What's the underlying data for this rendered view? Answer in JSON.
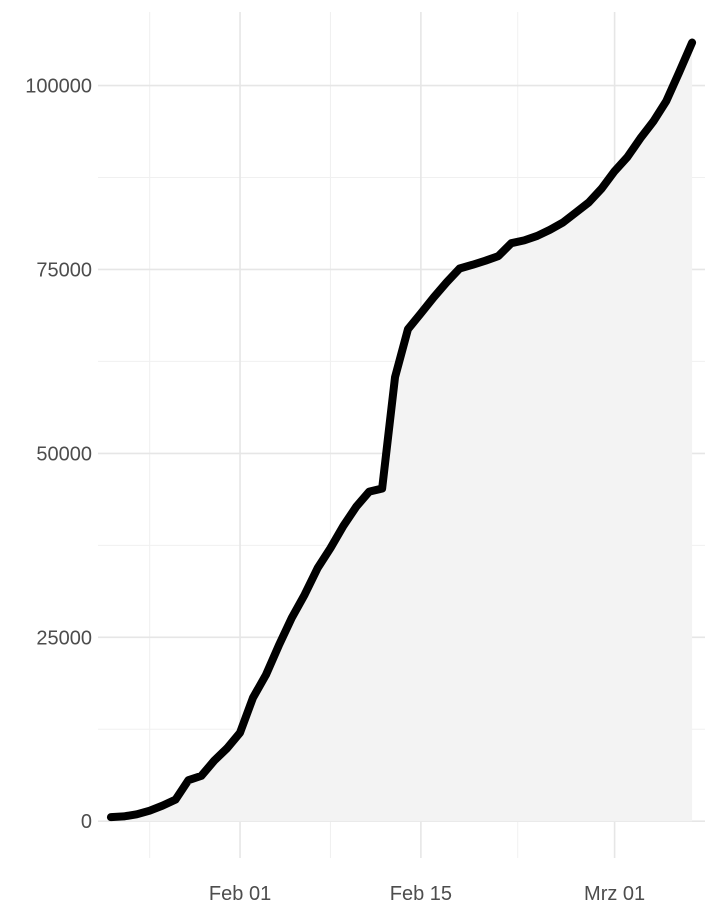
{
  "chart_data": {
    "type": "area",
    "title": "",
    "xlabel": "",
    "ylabel": "",
    "grid": true,
    "legend": "none",
    "xlim": [
      "2020-01-21",
      "2020-03-08"
    ],
    "ylim": [
      -5000,
      110000
    ],
    "x_ticks": [
      {
        "date": "2020-02-01",
        "label": "Feb 01"
      },
      {
        "date": "2020-02-15",
        "label": "Feb 15"
      },
      {
        "date": "2020-03-01",
        "label": "Mrz 01"
      }
    ],
    "y_ticks": [
      {
        "value": 0,
        "label": "0"
      },
      {
        "value": 25000,
        "label": "25000"
      },
      {
        "value": 50000,
        "label": "50000"
      },
      {
        "value": 75000,
        "label": "75000"
      },
      {
        "value": 100000,
        "label": "100000"
      }
    ],
    "colors": {
      "line": "#000000",
      "area": "#f3f3f3",
      "grid": "#e6e6e6",
      "text": "#4d4d4d"
    },
    "series": [
      {
        "x": [
          "2020-01-22",
          "2020-01-23",
          "2020-01-24",
          "2020-01-25",
          "2020-01-26",
          "2020-01-27",
          "2020-01-28",
          "2020-01-29",
          "2020-01-30",
          "2020-01-31",
          "2020-02-01",
          "2020-02-02",
          "2020-02-03",
          "2020-02-04",
          "2020-02-05",
          "2020-02-06",
          "2020-02-07",
          "2020-02-08",
          "2020-02-09",
          "2020-02-10",
          "2020-02-11",
          "2020-02-12",
          "2020-02-13",
          "2020-02-14",
          "2020-02-15",
          "2020-02-16",
          "2020-02-17",
          "2020-02-18",
          "2020-02-19",
          "2020-02-20",
          "2020-02-21",
          "2020-02-22",
          "2020-02-23",
          "2020-02-24",
          "2020-02-25",
          "2020-02-26",
          "2020-02-27",
          "2020-02-28",
          "2020-02-29",
          "2020-03-01",
          "2020-03-02",
          "2020-03-03",
          "2020-03-04",
          "2020-03-05",
          "2020-03-06",
          "2020-03-07"
        ],
        "values": [
          555,
          654,
          941,
          1434,
          2118,
          2927,
          5578,
          6166,
          8234,
          9927,
          12038,
          16787,
          19881,
          23892,
          27635,
          30794,
          34391,
          37120,
          40150,
          42762,
          44802,
          45221,
          60368,
          66885,
          69030,
          71224,
          73258,
          75136,
          75639,
          76197,
          76819,
          78572,
          78958,
          79561,
          80406,
          81388,
          82746,
          84112,
          86011,
          88369,
          90306,
          92840,
          95120,
          97886,
          101801,
          105847
        ]
      }
    ]
  }
}
